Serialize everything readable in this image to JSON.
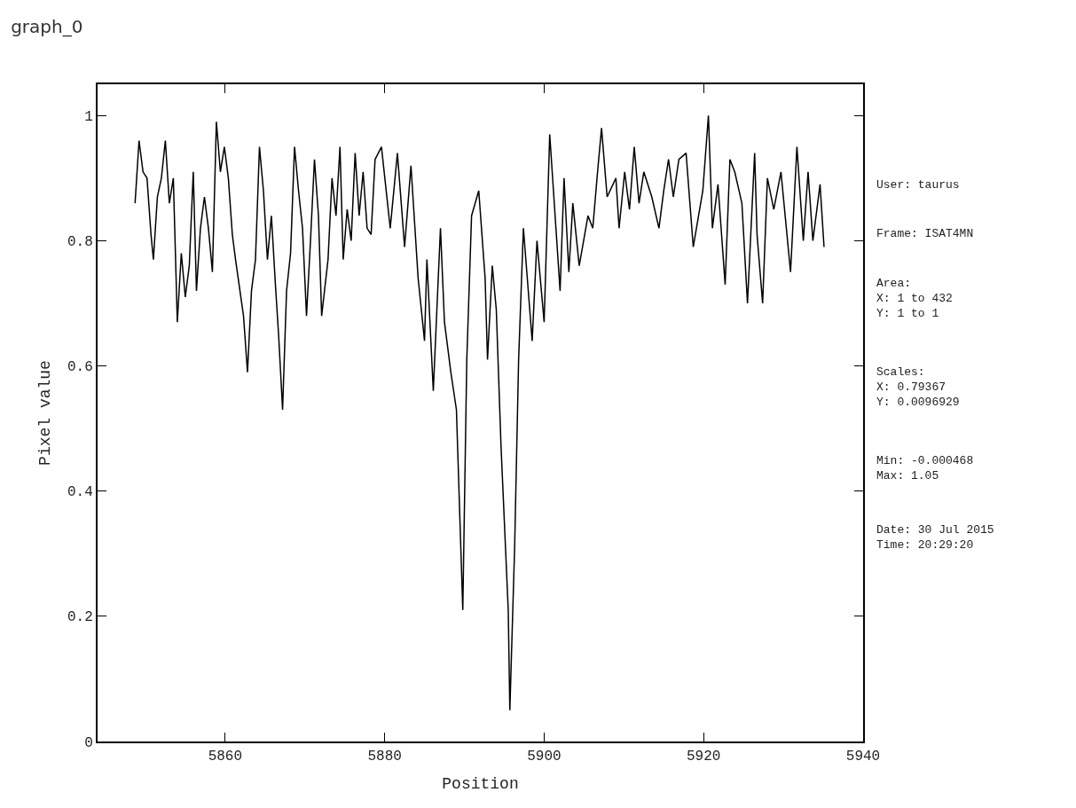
{
  "chart_data": {
    "type": "line",
    "title": "graph_0",
    "xlabel": "Position",
    "ylabel": "Pixel value",
    "x": [
      5848.7,
      5849.2,
      5849.7,
      5850.2,
      5850.7,
      5851.0,
      5851.5,
      5852.0,
      5852.5,
      5853.0,
      5853.5,
      5854.0,
      5854.5,
      5855.0,
      5855.5,
      5856.0,
      5856.4,
      5856.9,
      5857.4,
      5857.9,
      5858.4,
      5858.9,
      5859.4,
      5859.9,
      5860.4,
      5860.9,
      5861.3,
      5862.3,
      5862.8,
      5863.3,
      5863.8,
      5864.3,
      5864.8,
      5865.3,
      5865.8,
      5866.3,
      5866.7,
      5867.2,
      5867.7,
      5868.2,
      5868.7,
      5869.2,
      5869.7,
      5870.2,
      5870.7,
      5871.2,
      5871.7,
      5872.1,
      5872.9,
      5873.4,
      5873.9,
      5874.4,
      5874.8,
      5875.3,
      5875.8,
      5876.3,
      5876.8,
      5877.3,
      5877.8,
      5878.3,
      5878.8,
      5879.6,
      5880.7,
      5881.6,
      5882.5,
      5883.3,
      5884.2,
      5885.0,
      5885.3,
      5886.1,
      5887.0,
      5887.5,
      5888.3,
      5889.0,
      5889.8,
      5890.3,
      5890.9,
      5891.8,
      5892.6,
      5892.9,
      5893.5,
      5894.0,
      5894.6,
      5895.5,
      5895.7,
      5896.3,
      5896.8,
      5897.4,
      5898.5,
      5899.1,
      5900.0,
      5900.7,
      5902.0,
      5902.5,
      5903.1,
      5903.6,
      5904.4,
      5905.5,
      5906.1,
      5906.7,
      5907.2,
      5907.9,
      5909.0,
      5909.4,
      5910.1,
      5910.7,
      5911.3,
      5911.9,
      5912.5,
      5913.5,
      5914.4,
      5915.0,
      5915.6,
      5916.2,
      5916.9,
      5917.8,
      5918.7,
      5919.9,
      5920.6,
      5921.1,
      5921.8,
      5922.7,
      5923.3,
      5923.9,
      5924.8,
      5925.5,
      5926.4,
      5926.7,
      5927.4,
      5928.0,
      5928.8,
      5929.7,
      5930.9,
      5931.7,
      5932.5,
      5933.1,
      5933.7,
      5934.6,
      5935.1
    ],
    "series": [
      {
        "color": "#000000",
        "values": [
          0.86,
          0.96,
          0.91,
          0.9,
          0.81,
          0.77,
          0.87,
          0.9,
          0.96,
          0.86,
          0.9,
          0.67,
          0.78,
          0.71,
          0.76,
          0.91,
          0.72,
          0.82,
          0.87,
          0.82,
          0.75,
          0.99,
          0.91,
          0.95,
          0.9,
          0.81,
          0.77,
          0.68,
          0.59,
          0.72,
          0.77,
          0.95,
          0.88,
          0.77,
          0.84,
          0.73,
          0.65,
          0.53,
          0.72,
          0.78,
          0.95,
          0.88,
          0.82,
          0.68,
          0.8,
          0.93,
          0.84,
          0.68,
          0.77,
          0.9,
          0.84,
          0.95,
          0.77,
          0.85,
          0.8,
          0.94,
          0.84,
          0.91,
          0.82,
          0.81,
          0.93,
          0.95,
          0.82,
          0.94,
          0.79,
          0.92,
          0.74,
          0.64,
          0.77,
          0.56,
          0.82,
          0.67,
          0.59,
          0.53,
          0.21,
          0.61,
          0.84,
          0.88,
          0.74,
          0.61,
          0.76,
          0.69,
          0.47,
          0.21,
          0.05,
          0.31,
          0.61,
          0.82,
          0.64,
          0.8,
          0.67,
          0.97,
          0.72,
          0.9,
          0.75,
          0.86,
          0.76,
          0.84,
          0.82,
          0.91,
          0.98,
          0.87,
          0.9,
          0.82,
          0.91,
          0.85,
          0.95,
          0.86,
          0.91,
          0.87,
          0.82,
          0.88,
          0.93,
          0.87,
          0.93,
          0.94,
          0.79,
          0.88,
          1.0,
          0.82,
          0.89,
          0.73,
          0.93,
          0.91,
          0.86,
          0.7,
          0.94,
          0.81,
          0.7,
          0.9,
          0.85,
          0.91,
          0.75,
          0.95,
          0.8,
          0.91,
          0.8,
          0.89,
          0.79
        ]
      }
    ],
    "xlim": [
      5844,
      5940
    ],
    "xticks": [
      5860,
      5880,
      5900,
      5920,
      5940
    ],
    "ylim": [
      0,
      1.05
    ],
    "yticks": [
      0,
      0.2,
      0.4,
      0.6,
      0.8,
      1
    ],
    "marker": "none",
    "line_style": "solid",
    "annotations": [
      "User: taurus",
      "Frame: ISAT4MN",
      "Area:\nX: 1 to 432\nY: 1 to 1",
      "Scales:\nX: 0.79367\nY: 0.0096929",
      "Min: -0.000468\nMax: 1.05",
      "Date: 30 Jul 2015\nTime: 20:29:20"
    ]
  }
}
